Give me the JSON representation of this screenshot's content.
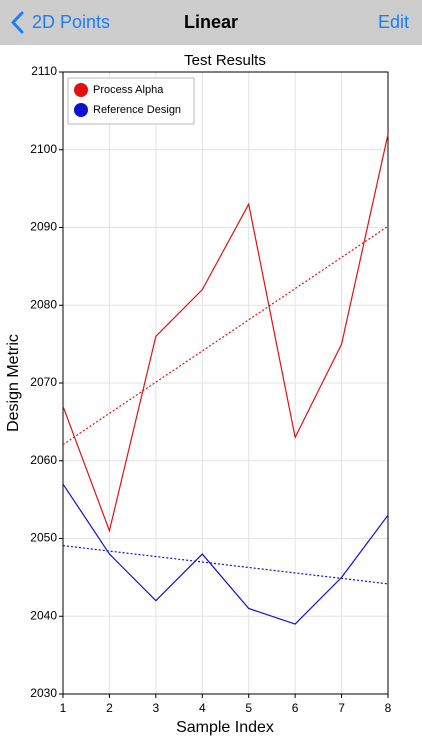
{
  "nav": {
    "back": "2D Points",
    "title": "Linear",
    "action": "Edit"
  },
  "chart_data": {
    "type": "line",
    "title": "Test Results",
    "x_label": "Sample Index",
    "y_label": "Design Metric",
    "x": [
      1,
      2,
      3,
      4,
      5,
      6,
      7,
      8
    ],
    "series": [
      {
        "name": "Process Alpha",
        "color": "#e41010",
        "values": [
          2067,
          2051,
          2076,
          2082,
          2093,
          2063,
          2075,
          2102
        ]
      },
      {
        "name": "Reference Design",
        "color": "#1010d0",
        "values": [
          2057,
          2048,
          2042,
          2048,
          2041,
          2039,
          2045,
          2053
        ]
      }
    ],
    "xlim": [
      1,
      8
    ],
    "xticks": [
      1,
      2,
      3,
      4,
      5,
      6,
      7,
      8
    ],
    "ylim": [
      2030,
      2110
    ],
    "yticks": [
      2030,
      2040,
      2050,
      2060,
      2070,
      2080,
      2090,
      2100,
      2110
    ],
    "grid": true,
    "trendline": "linear",
    "legend": "upper left"
  }
}
